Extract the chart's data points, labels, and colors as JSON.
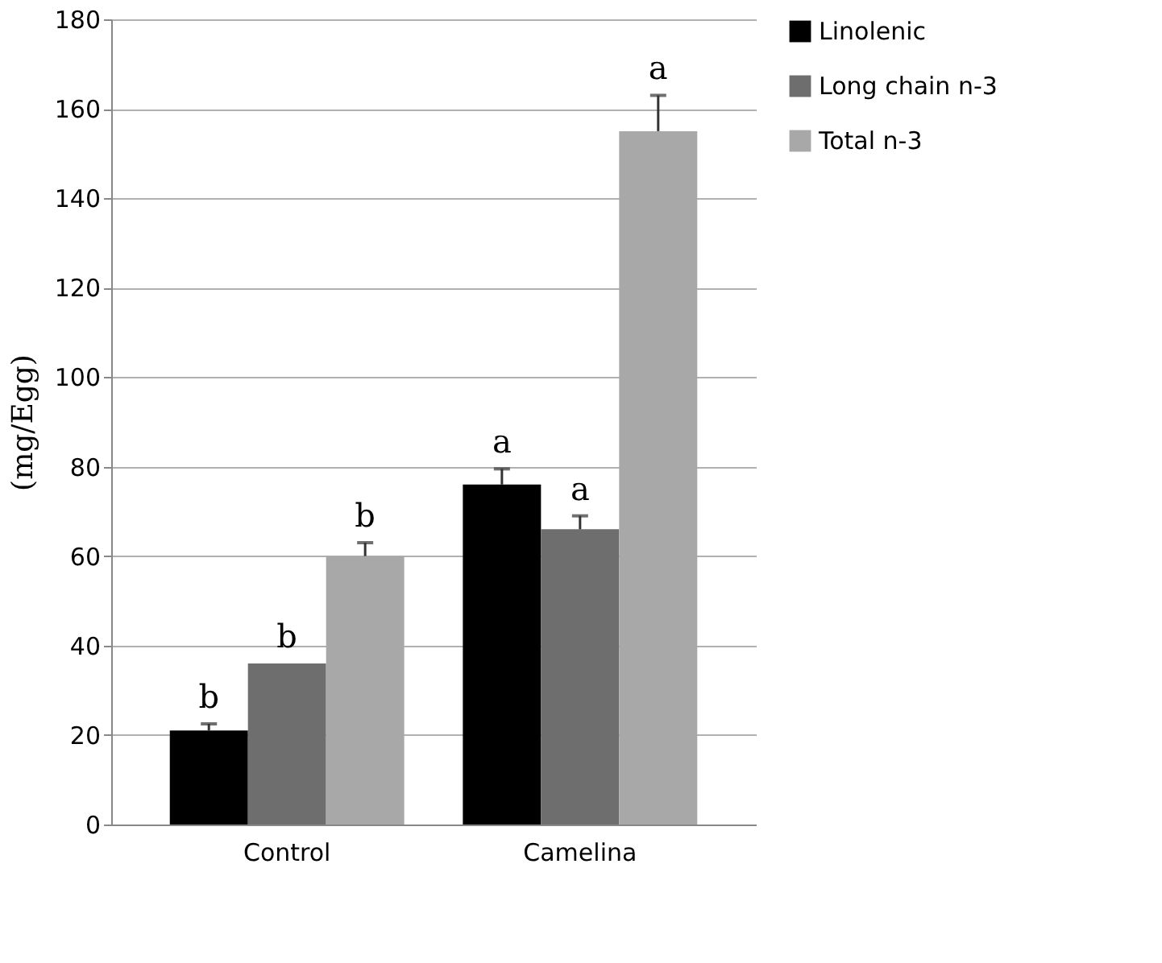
{
  "chart_data": {
    "type": "bar",
    "ylabel": "(mg/Egg)",
    "categories": [
      "Control",
      "Camelina"
    ],
    "series": [
      {
        "name": "Linolenic",
        "color": "#000000",
        "values": [
          21,
          76
        ],
        "errors": [
          [
            21,
            22.5
          ],
          [
            76,
            79.5
          ]
        ]
      },
      {
        "name": "Long chain n-3",
        "color": "#6e6e6e",
        "values": [
          36,
          66
        ],
        "errors": [
          null,
          [
            66,
            69
          ]
        ]
      },
      {
        "name": "Total n-3",
        "color": "#a8a8a8",
        "values": [
          60,
          155
        ],
        "errors": [
          [
            60,
            63
          ],
          [
            155,
            163
          ]
        ]
      }
    ],
    "ylim": [
      0,
      180
    ],
    "yticks": [
      0,
      20,
      40,
      60,
      80,
      100,
      120,
      140,
      160,
      180
    ],
    "grid": "y",
    "legend": "right",
    "annotations": [
      "b",
      "b",
      "b",
      "a",
      "a",
      "a"
    ]
  }
}
